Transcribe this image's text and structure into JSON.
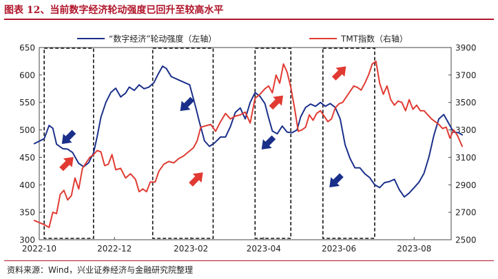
{
  "figure": {
    "title": "图表 12、当前数字经济轮动强度已回升至较高水平",
    "source": "资料来源：Wind，兴业证券经济与金融研究院整理"
  },
  "chart_data": {
    "type": "line",
    "xlabel": "",
    "ylabel_left": "",
    "ylabel_right": "",
    "x_ticks": [
      "2022-10",
      "2022-12",
      "2023-02",
      "2023-04",
      "2023-06",
      "2023-08"
    ],
    "x_range": [
      "2022-10-01",
      "2023-08-31"
    ],
    "y_left_range": [
      300,
      650
    ],
    "y_left_ticks": [
      300,
      350,
      400,
      450,
      500,
      550,
      600,
      650
    ],
    "y_right_range": [
      2500,
      3900
    ],
    "y_right_ticks": [
      2500,
      2700,
      2900,
      3100,
      3300,
      3500,
      3700,
      3900
    ],
    "legend_position": "top",
    "grid": false,
    "series": [
      {
        "name": "“数字经济”轮动强度（左轴）",
        "axis": "left",
        "color": "#1a2f8a",
        "points": [
          [
            "2022-09-27",
            475
          ],
          [
            "2022-10-05",
            484
          ],
          [
            "2022-10-09",
            508
          ],
          [
            "2022-10-12",
            503
          ],
          [
            "2022-10-15",
            474
          ],
          [
            "2022-10-20",
            466
          ],
          [
            "2022-10-24",
            465
          ],
          [
            "2022-10-28",
            459
          ],
          [
            "2022-11-02",
            439
          ],
          [
            "2022-11-06",
            433
          ],
          [
            "2022-11-10",
            440
          ],
          [
            "2022-11-14",
            458
          ],
          [
            "2022-11-17",
            488
          ],
          [
            "2022-11-20",
            523
          ],
          [
            "2022-11-24",
            550
          ],
          [
            "2022-11-28",
            568
          ],
          [
            "2022-12-02",
            576
          ],
          [
            "2022-12-06",
            560
          ],
          [
            "2022-12-10",
            567
          ],
          [
            "2022-12-13",
            578
          ],
          [
            "2022-12-17",
            572
          ],
          [
            "2022-12-21",
            582
          ],
          [
            "2022-12-25",
            575
          ],
          [
            "2022-12-29",
            578
          ],
          [
            "2023-01-02",
            586
          ],
          [
            "2023-01-05",
            600
          ],
          [
            "2023-01-09",
            616
          ],
          [
            "2023-01-12",
            612
          ],
          [
            "2023-01-16",
            597
          ],
          [
            "2023-01-31",
            582
          ],
          [
            "2023-02-05",
            540
          ],
          [
            "2023-02-08",
            513
          ],
          [
            "2023-02-12",
            480
          ],
          [
            "2023-02-16",
            470
          ],
          [
            "2023-02-20",
            476
          ],
          [
            "2023-02-25",
            487
          ],
          [
            "2023-03-01",
            487
          ],
          [
            "2023-03-05",
            506
          ],
          [
            "2023-03-09",
            532
          ],
          [
            "2023-03-13",
            540
          ],
          [
            "2023-03-17",
            520
          ],
          [
            "2023-03-21",
            550
          ],
          [
            "2023-03-25",
            568
          ],
          [
            "2023-03-29",
            561
          ],
          [
            "2023-04-02",
            548
          ],
          [
            "2023-04-05",
            522
          ],
          [
            "2023-04-08",
            498
          ],
          [
            "2023-04-12",
            493
          ],
          [
            "2023-04-16",
            507
          ],
          [
            "2023-04-20",
            496
          ],
          [
            "2023-04-24",
            495
          ],
          [
            "2023-04-28",
            500
          ],
          [
            "2023-05-01",
            524
          ],
          [
            "2023-05-05",
            541
          ],
          [
            "2023-05-09",
            547
          ],
          [
            "2023-05-13",
            543
          ],
          [
            "2023-05-17",
            550
          ],
          [
            "2023-05-21",
            543
          ],
          [
            "2023-05-25",
            548
          ],
          [
            "2023-05-29",
            541
          ],
          [
            "2023-06-02",
            520
          ],
          [
            "2023-06-06",
            473
          ],
          [
            "2023-06-10",
            448
          ],
          [
            "2023-06-14",
            431
          ],
          [
            "2023-06-18",
            431
          ],
          [
            "2023-06-22",
            420
          ],
          [
            "2023-06-26",
            413
          ],
          [
            "2023-06-30",
            400
          ],
          [
            "2023-07-04",
            395
          ],
          [
            "2023-07-08",
            404
          ],
          [
            "2023-07-12",
            406
          ],
          [
            "2023-07-16",
            410
          ],
          [
            "2023-07-20",
            391
          ],
          [
            "2023-07-24",
            378
          ],
          [
            "2023-07-28",
            385
          ],
          [
            "2023-08-01",
            395
          ],
          [
            "2023-08-05",
            405
          ],
          [
            "2023-08-09",
            421
          ],
          [
            "2023-08-13",
            451
          ],
          [
            "2023-08-17",
            490
          ],
          [
            "2023-08-21",
            520
          ],
          [
            "2023-08-25",
            528
          ],
          [
            "2023-08-29",
            512
          ],
          [
            "2023-09-02",
            496
          ],
          [
            "2023-09-06",
            495
          ],
          [
            "2023-09-09",
            491
          ]
        ]
      },
      {
        "name": "TMT指数（右轴）",
        "axis": "right",
        "color": "#e03a32",
        "points": [
          [
            "2022-09-27",
            2640
          ],
          [
            "2022-10-05",
            2610
          ],
          [
            "2022-10-09",
            2590
          ],
          [
            "2022-10-12",
            2700
          ],
          [
            "2022-10-15",
            2690
          ],
          [
            "2022-10-18",
            2830
          ],
          [
            "2022-10-21",
            2860
          ],
          [
            "2022-10-24",
            2790
          ],
          [
            "2022-10-27",
            2820
          ],
          [
            "2022-10-30",
            2950
          ],
          [
            "2022-11-02",
            2870
          ],
          [
            "2022-11-05",
            3020
          ],
          [
            "2022-11-08",
            3060
          ],
          [
            "2022-11-11",
            3100
          ],
          [
            "2022-11-14",
            3120
          ],
          [
            "2022-11-17",
            3150
          ],
          [
            "2022-11-20",
            3140
          ],
          [
            "2022-11-23",
            3040
          ],
          [
            "2022-11-26",
            3050
          ],
          [
            "2022-11-29",
            3120
          ],
          [
            "2022-12-02",
            3010
          ],
          [
            "2022-12-06",
            3020
          ],
          [
            "2022-12-10",
            2950
          ],
          [
            "2022-12-14",
            2980
          ],
          [
            "2022-12-18",
            2940
          ],
          [
            "2022-12-21",
            2850
          ],
          [
            "2022-12-24",
            2870
          ],
          [
            "2022-12-27",
            2850
          ],
          [
            "2022-12-30",
            2920
          ],
          [
            "2023-01-03",
            2920
          ],
          [
            "2023-01-06",
            3000
          ],
          [
            "2023-01-10",
            3050
          ],
          [
            "2023-01-14",
            3070
          ],
          [
            "2023-01-18",
            3060
          ],
          [
            "2023-01-22",
            3090
          ],
          [
            "2023-01-26",
            3110
          ],
          [
            "2023-01-30",
            3140
          ],
          [
            "2023-02-03",
            3170
          ],
          [
            "2023-02-06",
            3220
          ],
          [
            "2023-02-09",
            3320
          ],
          [
            "2023-02-13",
            3330
          ],
          [
            "2023-02-17",
            3340
          ],
          [
            "2023-02-21",
            3290
          ],
          [
            "2023-02-25",
            3360
          ],
          [
            "2023-03-01",
            3420
          ],
          [
            "2023-03-05",
            3380
          ],
          [
            "2023-03-09",
            3400
          ],
          [
            "2023-03-13",
            3410
          ],
          [
            "2023-03-17",
            3430
          ],
          [
            "2023-03-21",
            3350
          ],
          [
            "2023-03-25",
            3530
          ],
          [
            "2023-03-29",
            3560
          ],
          [
            "2023-04-02",
            3600
          ],
          [
            "2023-04-05",
            3620
          ],
          [
            "2023-04-08",
            3570
          ],
          [
            "2023-04-11",
            3700
          ],
          [
            "2023-04-14",
            3640
          ],
          [
            "2023-04-17",
            3780
          ],
          [
            "2023-04-20",
            3720
          ],
          [
            "2023-04-23",
            3610
          ],
          [
            "2023-04-26",
            3460
          ],
          [
            "2023-04-29",
            3290
          ],
          [
            "2023-05-02",
            3300
          ],
          [
            "2023-05-05",
            3320
          ],
          [
            "2023-05-08",
            3410
          ],
          [
            "2023-05-11",
            3370
          ],
          [
            "2023-05-14",
            3420
          ],
          [
            "2023-05-17",
            3440
          ],
          [
            "2023-05-20",
            3400
          ],
          [
            "2023-05-23",
            3360
          ],
          [
            "2023-05-26",
            3380
          ],
          [
            "2023-05-29",
            3460
          ],
          [
            "2023-06-01",
            3490
          ],
          [
            "2023-06-04",
            3500
          ],
          [
            "2023-06-07",
            3540
          ],
          [
            "2023-06-10",
            3580
          ],
          [
            "2023-06-13",
            3620
          ],
          [
            "2023-06-16",
            3610
          ],
          [
            "2023-06-19",
            3590
          ],
          [
            "2023-06-22",
            3640
          ],
          [
            "2023-06-25",
            3700
          ],
          [
            "2023-06-28",
            3780
          ],
          [
            "2023-07-01",
            3800
          ],
          [
            "2023-07-04",
            3640
          ],
          [
            "2023-07-07",
            3560
          ],
          [
            "2023-07-10",
            3620
          ],
          [
            "2023-07-13",
            3520
          ],
          [
            "2023-07-16",
            3480
          ],
          [
            "2023-07-19",
            3510
          ],
          [
            "2023-07-22",
            3500
          ],
          [
            "2023-07-25",
            3440
          ],
          [
            "2023-07-28",
            3520
          ],
          [
            "2023-07-31",
            3450
          ],
          [
            "2023-08-03",
            3480
          ],
          [
            "2023-08-06",
            3440
          ],
          [
            "2023-08-09",
            3440
          ],
          [
            "2023-08-12",
            3410
          ],
          [
            "2023-08-15",
            3380
          ],
          [
            "2023-08-18",
            3360
          ],
          [
            "2023-08-21",
            3340
          ],
          [
            "2023-08-24",
            3310
          ],
          [
            "2023-08-27",
            3320
          ],
          [
            "2023-08-30",
            3240
          ],
          [
            "2023-09-02",
            3300
          ],
          [
            "2023-09-05",
            3260
          ],
          [
            "2023-09-09",
            3180
          ]
        ]
      }
    ],
    "highlight_periods": [
      [
        "2022-10-05",
        "2022-11-14"
      ],
      [
        "2023-01-01",
        "2023-02-19"
      ],
      [
        "2023-03-25",
        "2023-04-23"
      ],
      [
        "2023-05-19",
        "2023-06-30"
      ]
    ],
    "arrows": [
      {
        "direction": "down",
        "color": "#1a2f8a",
        "date": "2022-10-24",
        "level_left": 485
      },
      {
        "direction": "up",
        "color": "#e03a32",
        "date": "2022-10-24",
        "level_left": 440
      },
      {
        "direction": "down",
        "color": "#1a2f8a",
        "date": "2023-01-28",
        "level_left": 545
      },
      {
        "direction": "up",
        "color": "#e03a32",
        "date": "2023-02-06",
        "level_left": 412
      },
      {
        "direction": "down",
        "color": "#1a2f8a",
        "date": "2023-04-04",
        "level_left": 475
      },
      {
        "direction": "up",
        "color": "#e03a32",
        "date": "2023-04-12",
        "level_left": 552
      },
      {
        "direction": "down",
        "color": "#1a2f8a",
        "date": "2023-05-29",
        "level_left": 406
      },
      {
        "direction": "up",
        "color": "#e03a32",
        "date": "2023-06-02",
        "level_left": 605
      }
    ]
  }
}
